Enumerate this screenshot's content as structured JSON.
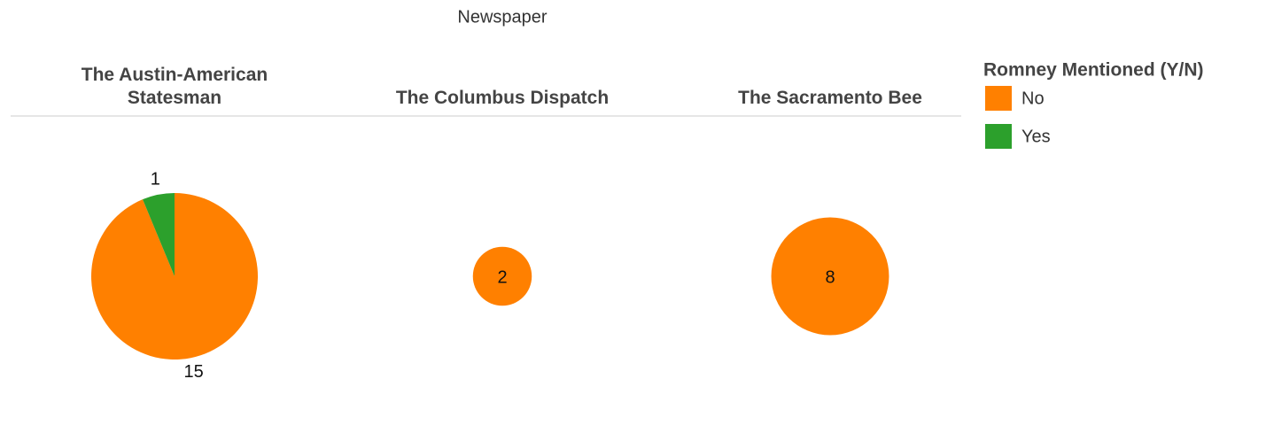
{
  "chart_data": {
    "type": "pie",
    "title": "Newspaper",
    "categories": [
      "The Austin-American Statesman",
      "The Columbus Dispatch",
      "The Sacramento Bee"
    ],
    "legend_title": "Romney Mentioned (Y/N)",
    "series": [
      {
        "name": "No",
        "color": "#ff8000",
        "values": [
          15,
          2,
          8
        ]
      },
      {
        "name": "Yes",
        "color": "#2ca02c",
        "values": [
          1,
          null,
          null
        ]
      }
    ]
  }
}
